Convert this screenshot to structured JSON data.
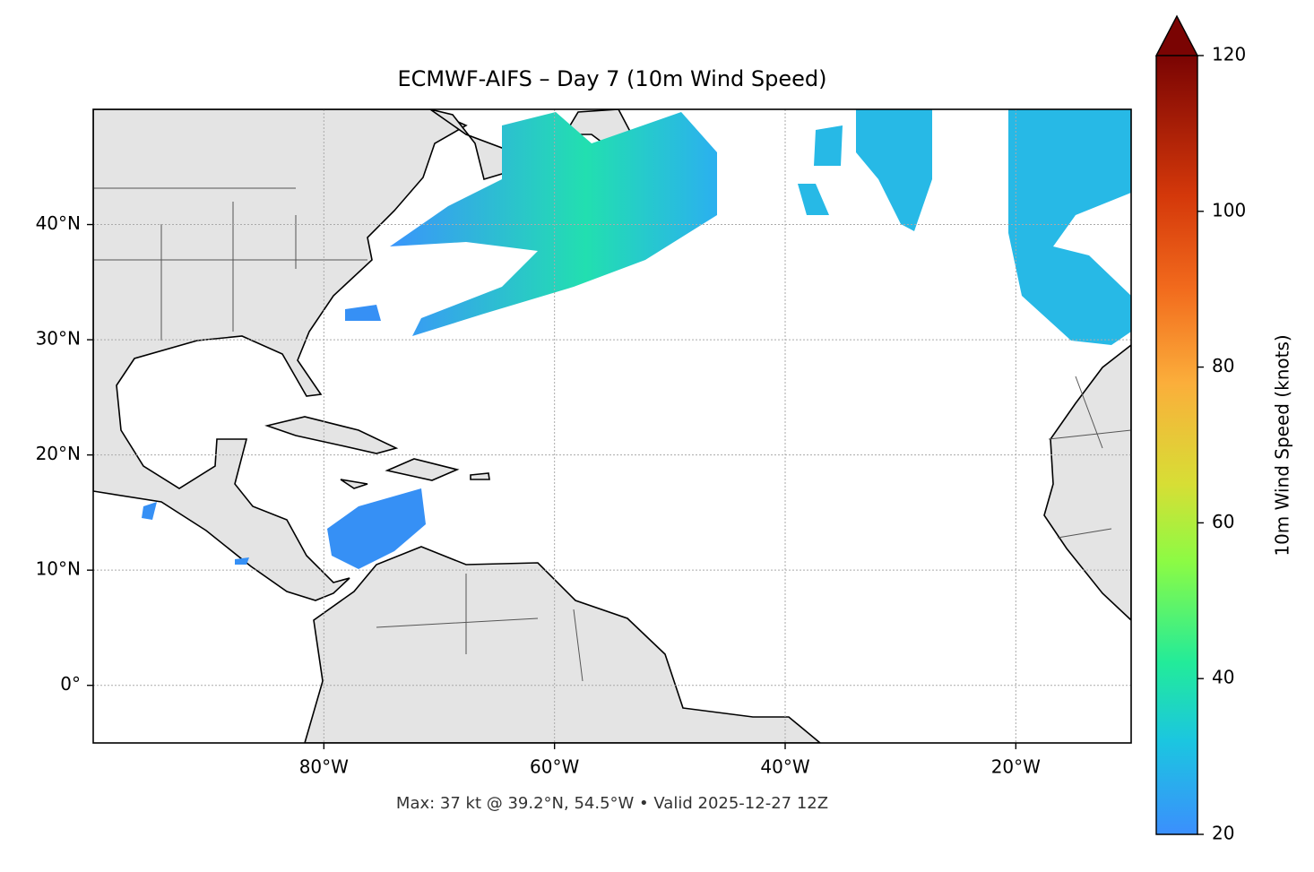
{
  "title": "ECMWF-AIFS – Day 7 (10m Wind Speed)",
  "map": {
    "xlim": [
      -100,
      -10
    ],
    "ylim": [
      -5,
      50
    ],
    "xticks": [
      {
        "value": -80,
        "label": "80°W"
      },
      {
        "value": -60,
        "label": "60°W"
      },
      {
        "value": -40,
        "label": "40°W"
      },
      {
        "value": -20,
        "label": "20°W"
      }
    ],
    "yticks": [
      {
        "value": 0,
        "label": "0°"
      },
      {
        "value": 10,
        "label": "10°N"
      },
      {
        "value": 20,
        "label": "20°N"
      },
      {
        "value": 30,
        "label": "30°N"
      },
      {
        "value": 40,
        "label": "40°N"
      }
    ]
  },
  "colorbar": {
    "label": "10m Wind Speed (knots)",
    "lim": [
      20,
      120
    ],
    "ticks": [
      20,
      40,
      60,
      80,
      100,
      120
    ]
  },
  "footer": "Max: 37 kt @ 39.2°N, 54.5°W • Valid 2025-12-27 12Z"
}
